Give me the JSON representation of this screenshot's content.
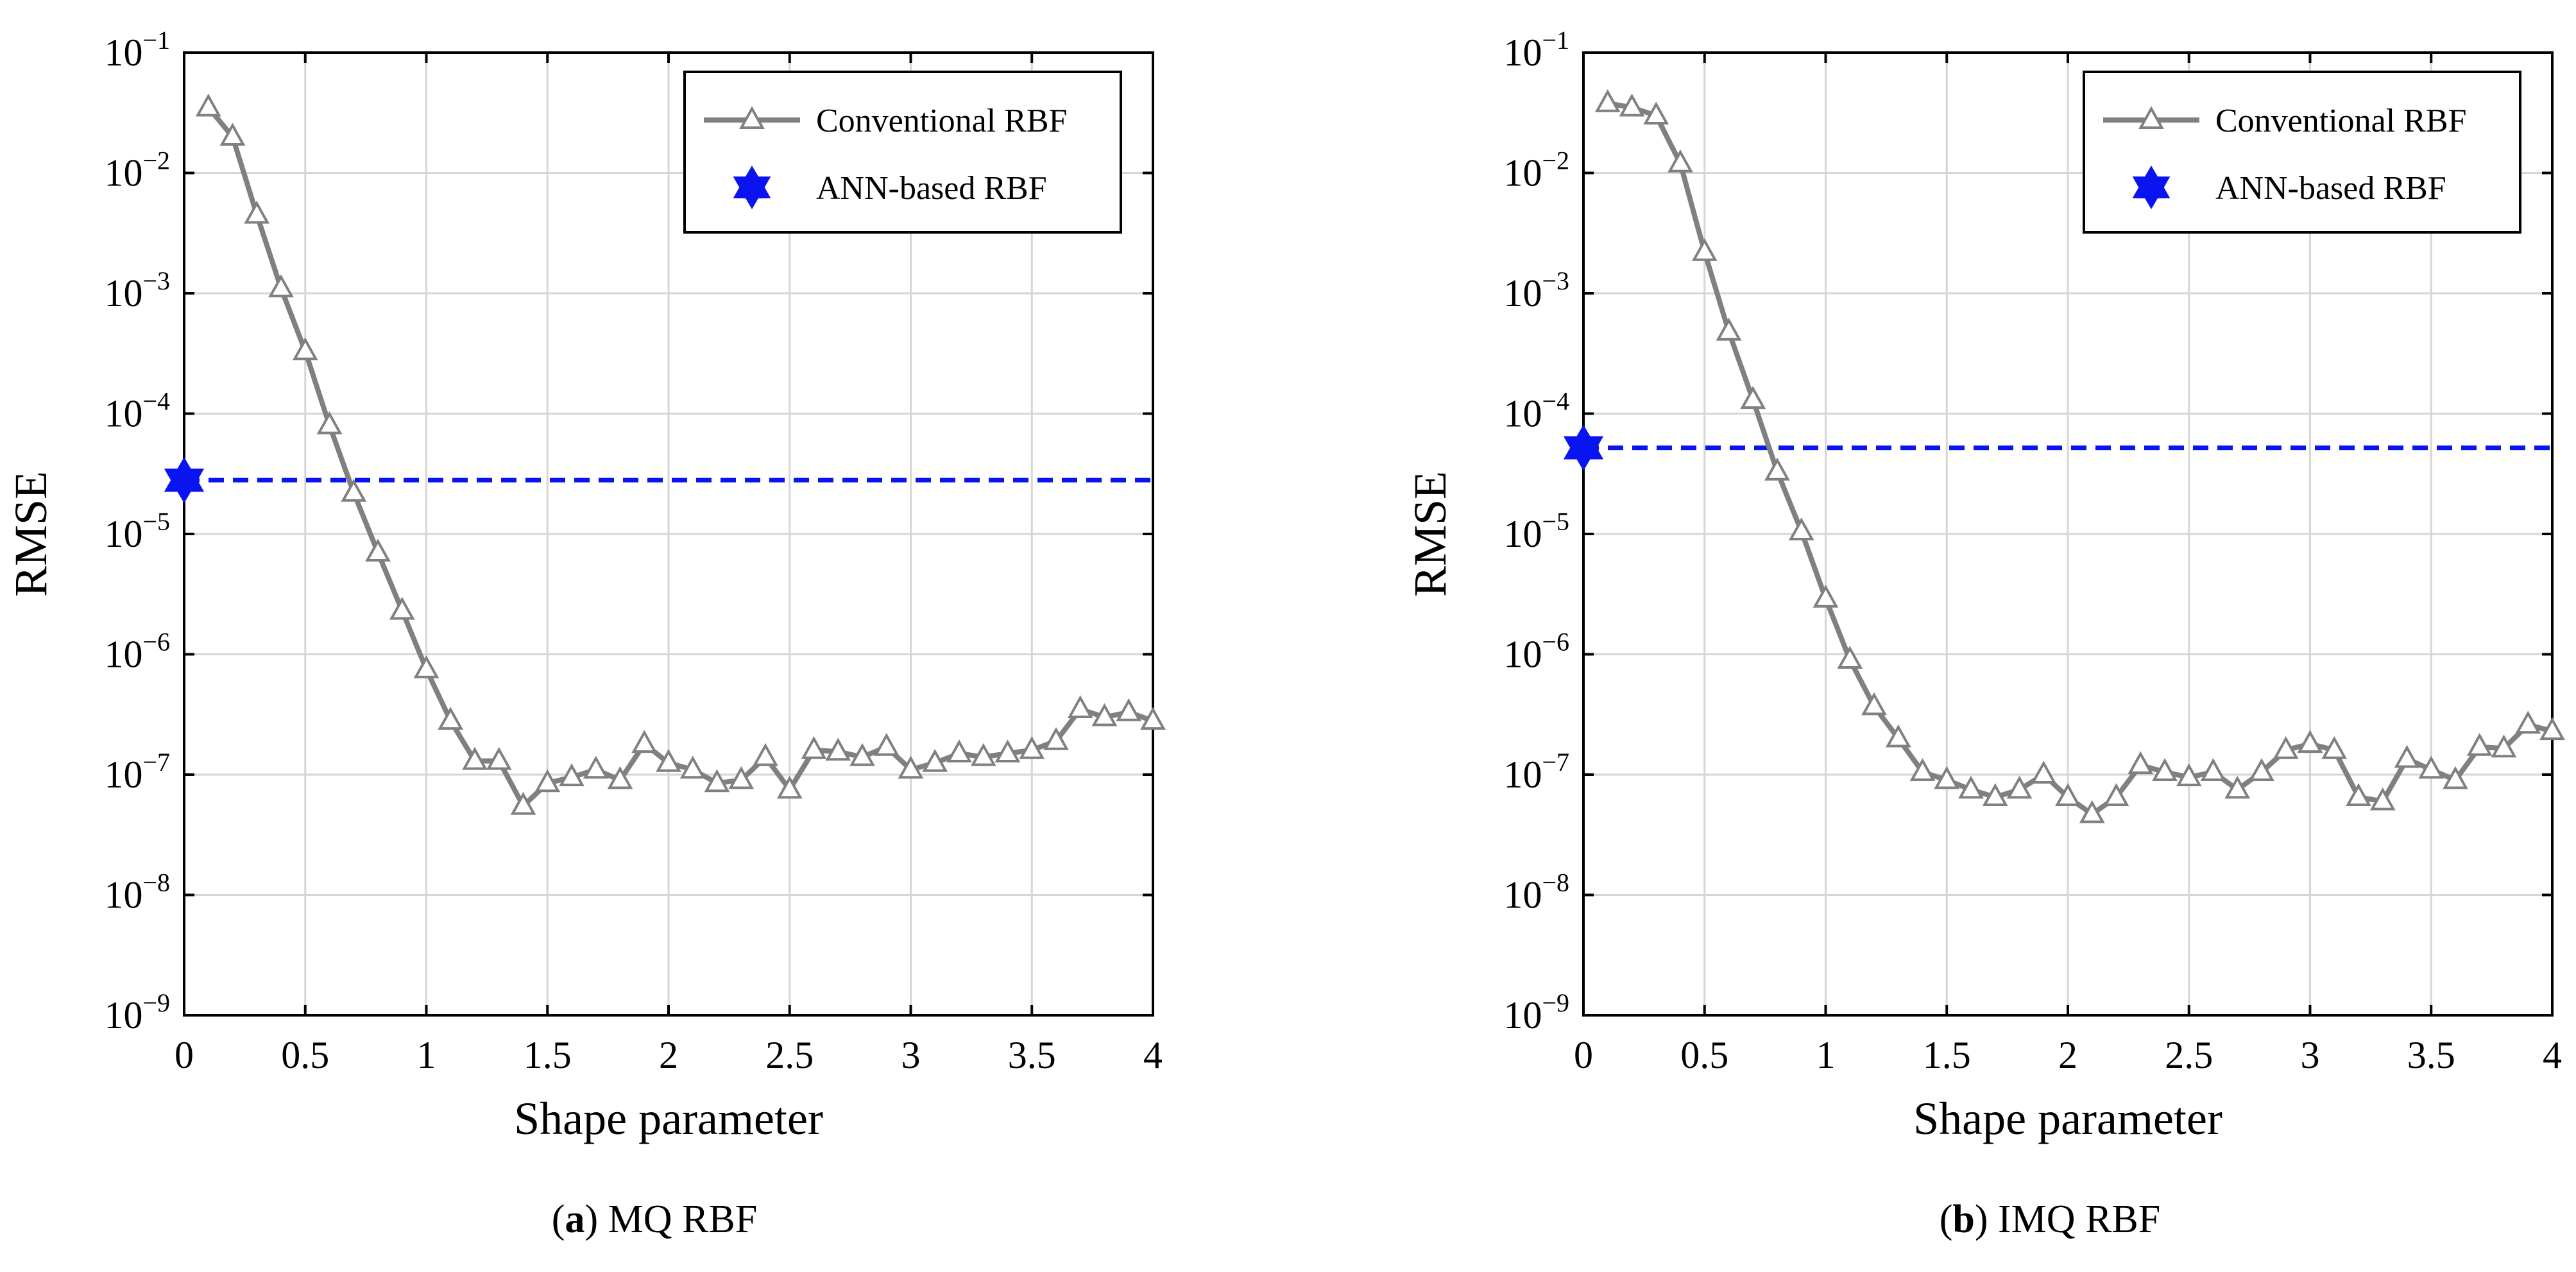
{
  "figure": {
    "captions": [
      {
        "label": "a",
        "text": " MQ RBF"
      },
      {
        "label": "b",
        "text": " IMQ RBF"
      }
    ]
  },
  "chart_data": [
    {
      "type": "line",
      "title": "",
      "xlabel": "Shape parameter",
      "ylabel": "RMSE",
      "xlim": [
        0,
        4
      ],
      "ylim": [
        1e-09,
        0.1
      ],
      "yscale": "log",
      "grid": true,
      "legend_position": "top-right",
      "x_ticks": [
        "0",
        "0.5",
        "1",
        "1.5",
        "2",
        "2.5",
        "3",
        "3.5",
        "4"
      ],
      "y_ticks": [
        {
          "base": "10",
          "exp": "−9"
        },
        {
          "base": "10",
          "exp": "−8"
        },
        {
          "base": "10",
          "exp": "−7"
        },
        {
          "base": "10",
          "exp": "−6"
        },
        {
          "base": "10",
          "exp": "−5"
        },
        {
          "base": "10",
          "exp": "−4"
        },
        {
          "base": "10",
          "exp": "−3"
        },
        {
          "base": "10",
          "exp": "−2"
        },
        {
          "base": "10",
          "exp": "−1"
        }
      ],
      "series": [
        {
          "name": "Conventional RBF",
          "color": "#808080",
          "marker": "triangle",
          "x": [
            0.1,
            0.2,
            0.3,
            0.4,
            0.5,
            0.6,
            0.7,
            0.8,
            0.9,
            1.0,
            1.1,
            1.2,
            1.3,
            1.4,
            1.5,
            1.6,
            1.7,
            1.8,
            1.9,
            2.0,
            2.1,
            2.2,
            2.3,
            2.4,
            2.5,
            2.6,
            2.7,
            2.8,
            2.9,
            3.0,
            3.1,
            3.2,
            3.3,
            3.4,
            3.5,
            3.6,
            3.7,
            3.8,
            3.9,
            4.0
          ],
          "y": [
            0.035,
            0.02,
            0.0045,
            0.0011,
            0.00033,
            8e-05,
            2.2e-05,
            7e-06,
            2.3e-06,
            7.5e-07,
            2.8e-07,
            1.3e-07,
            1.3e-07,
            5.5e-08,
            8.5e-08,
            9.5e-08,
            1.1e-07,
            9e-08,
            1.8e-07,
            1.25e-07,
            1.1e-07,
            8.5e-08,
            9e-08,
            1.4e-07,
            7.5e-08,
            1.6e-07,
            1.55e-07,
            1.4e-07,
            1.7e-07,
            1.1e-07,
            1.25e-07,
            1.5e-07,
            1.4e-07,
            1.5e-07,
            1.6e-07,
            1.9e-07,
            3.5e-07,
            3e-07,
            3.3e-07,
            2.8e-07
          ]
        },
        {
          "name": "ANN-based RBF",
          "color": "#0a14f0",
          "marker": "hexagram",
          "x": [
            0
          ],
          "y": [
            2.8e-05
          ],
          "reference_line_y": 2.8e-05
        }
      ]
    },
    {
      "type": "line",
      "title": "",
      "xlabel": "Shape parameter",
      "ylabel": "RMSE",
      "xlim": [
        0,
        4
      ],
      "ylim": [
        1e-09,
        0.1
      ],
      "yscale": "log",
      "grid": true,
      "legend_position": "top-right",
      "x_ticks": [
        "0",
        "0.5",
        "1",
        "1.5",
        "2",
        "2.5",
        "3",
        "3.5",
        "4"
      ],
      "y_ticks": [
        {
          "base": "10",
          "exp": "−9"
        },
        {
          "base": "10",
          "exp": "−8"
        },
        {
          "base": "10",
          "exp": "−7"
        },
        {
          "base": "10",
          "exp": "−6"
        },
        {
          "base": "10",
          "exp": "−5"
        },
        {
          "base": "10",
          "exp": "−4"
        },
        {
          "base": "10",
          "exp": "−3"
        },
        {
          "base": "10",
          "exp": "−2"
        },
        {
          "base": "10",
          "exp": "−1"
        }
      ],
      "series": [
        {
          "name": "Conventional RBF",
          "color": "#808080",
          "marker": "triangle",
          "x": [
            0.1,
            0.2,
            0.3,
            0.4,
            0.5,
            0.6,
            0.7,
            0.8,
            0.9,
            1.0,
            1.1,
            1.2,
            1.3,
            1.4,
            1.5,
            1.6,
            1.7,
            1.8,
            1.9,
            2.0,
            2.1,
            2.2,
            2.3,
            2.4,
            2.5,
            2.6,
            2.7,
            2.8,
            2.9,
            3.0,
            3.1,
            3.2,
            3.3,
            3.4,
            3.5,
            3.6,
            3.7,
            3.8,
            3.9,
            4.0
          ],
          "y": [
            0.038,
            0.035,
            0.03,
            0.012,
            0.0022,
            0.00048,
            0.00013,
            3.3e-05,
            1.05e-05,
            2.9e-06,
            9e-07,
            3.7e-07,
            2e-07,
            1.05e-07,
            9e-08,
            7.5e-08,
            6.5e-08,
            7.5e-08,
            1e-07,
            6.5e-08,
            4.7e-08,
            6.5e-08,
            1.2e-07,
            1.05e-07,
            9.5e-08,
            1.05e-07,
            7.5e-08,
            1.05e-07,
            1.6e-07,
            1.8e-07,
            1.6e-07,
            6.5e-08,
            6e-08,
            1.35e-07,
            1.1e-07,
            9e-08,
            1.7e-07,
            1.65e-07,
            2.6e-07,
            2.3e-07
          ]
        },
        {
          "name": "ANN-based RBF",
          "color": "#0a14f0",
          "marker": "hexagram",
          "x": [
            0
          ],
          "y": [
            5.2e-05
          ],
          "reference_line_y": 5.2e-05
        }
      ]
    }
  ]
}
